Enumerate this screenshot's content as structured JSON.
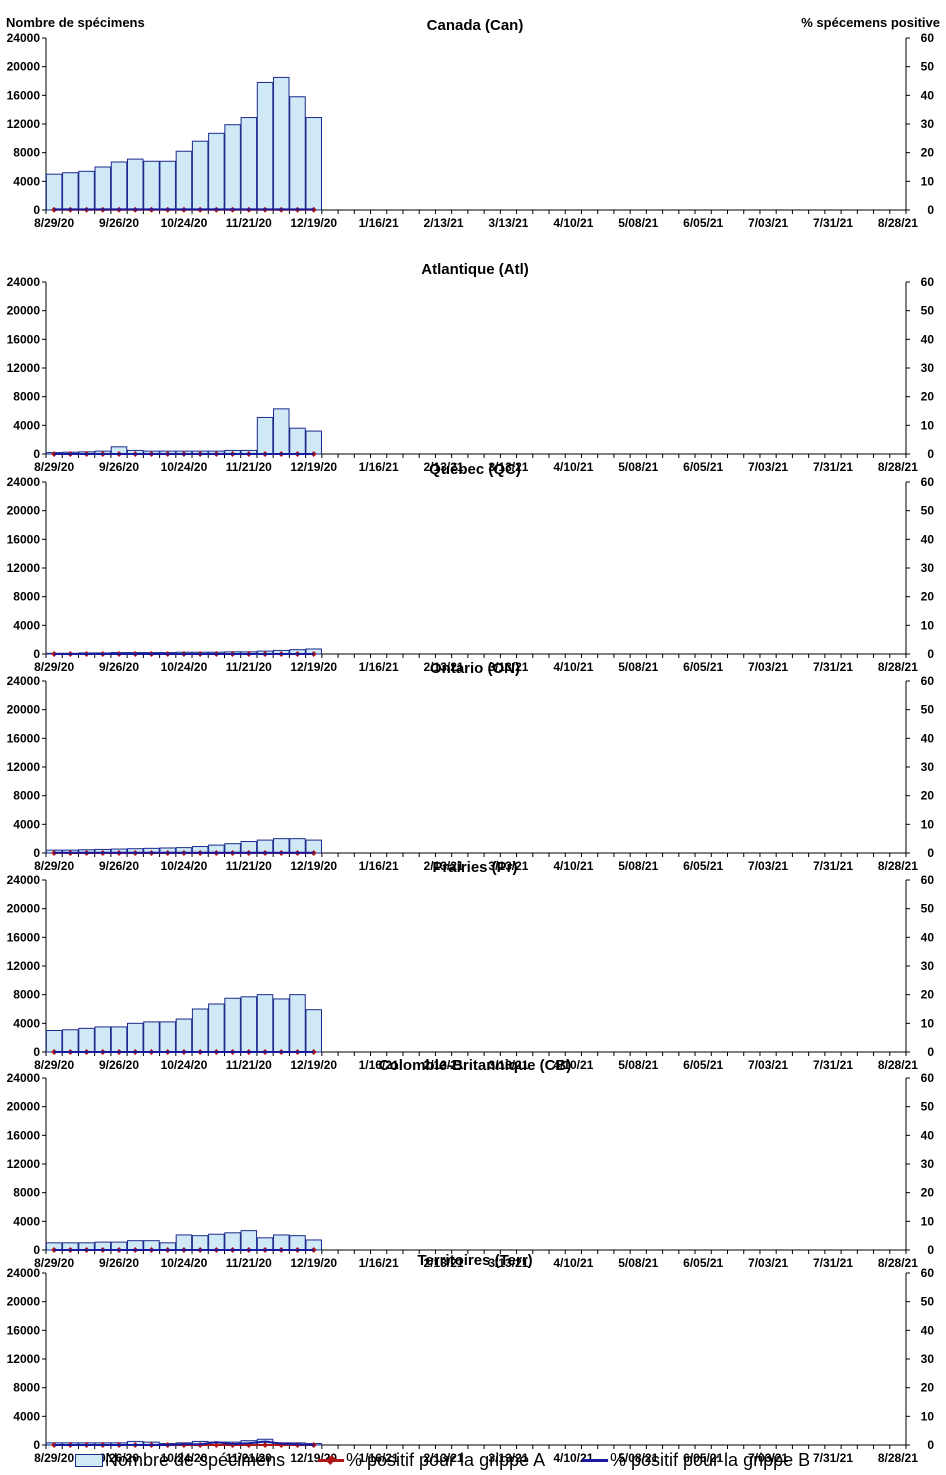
{
  "axis_titles": {
    "y_left": "Nombre de spécimens",
    "y_right": "% spécemens positive"
  },
  "legend": {
    "specimens": "Nombre de spécimens",
    "flu_a": "% positif pour la grippe A",
    "flu_b": "% positif pour la grippe B"
  },
  "colors": {
    "bar_fill": "#cfe9f7",
    "bar_stroke": "#1c2a8c",
    "flu_a": "#b01515",
    "flu_b": "#1a1a9c"
  },
  "chart_data": [
    {
      "type": "bar",
      "title": "Canada (Can)",
      "x_tick_labels": [
        "8/29/20",
        "9/26/20",
        "10/24/20",
        "11/21/20",
        "12/19/20",
        "1/16/21",
        "2/13/21",
        "3/13/21",
        "4/10/21",
        "5/08/21",
        "6/05/21",
        "7/03/21",
        "7/31/21",
        "8/28/21"
      ],
      "y_left_ticks": [
        0,
        4000,
        8000,
        12000,
        16000,
        20000,
        24000
      ],
      "y_right_ticks": [
        0,
        10,
        20,
        30,
        40,
        50,
        60
      ],
      "ylim": [
        0,
        24000
      ],
      "y2lim": [
        0,
        60
      ],
      "total_weeks": 53,
      "series": [
        {
          "name": "Nombre de spécimens",
          "kind": "bar",
          "axis": "left",
          "values": [
            5000,
            5200,
            5400,
            6000,
            6700,
            7100,
            6800,
            6800,
            8200,
            9600,
            10700,
            11900,
            12900,
            17800,
            18500,
            15800,
            12900
          ]
        },
        {
          "name": "% positif pour la grippe A",
          "kind": "line",
          "axis": "right",
          "values": [
            0.1,
            0.1,
            0.1,
            0.1,
            0.1,
            0.1,
            0.1,
            0.1,
            0.1,
            0.1,
            0.1,
            0.1,
            0.1,
            0.1,
            0.1,
            0.1,
            0.1
          ]
        },
        {
          "name": "% positif pour la grippe B",
          "kind": "line",
          "axis": "right",
          "values": [
            0.2,
            0.2,
            0.2,
            0.2,
            0.2,
            0.2,
            0.2,
            0.2,
            0.2,
            0.2,
            0.2,
            0.2,
            0.2,
            0.2,
            0.2,
            0.2,
            0.2
          ]
        }
      ]
    },
    {
      "type": "bar",
      "title": "Atlantique (Atl)",
      "x_tick_labels": [
        "8/29/20",
        "9/26/20",
        "10/24/20",
        "11/21/20",
        "12/19/20",
        "1/16/21",
        "2/13/21",
        "3/13/21",
        "4/10/21",
        "5/08/21",
        "6/05/21",
        "7/03/21",
        "7/31/21",
        "8/28/21"
      ],
      "y_left_ticks": [
        0,
        4000,
        8000,
        12000,
        16000,
        20000,
        24000
      ],
      "y_right_ticks": [
        0,
        10,
        20,
        30,
        40,
        50,
        60
      ],
      "ylim": [
        0,
        24000
      ],
      "y2lim": [
        0,
        60
      ],
      "total_weeks": 53,
      "series": [
        {
          "name": "Nombre de spécimens",
          "kind": "bar",
          "axis": "left",
          "values": [
            200,
            250,
            300,
            400,
            1000,
            500,
            400,
            400,
            400,
            400,
            400,
            500,
            500,
            5100,
            6300,
            3600,
            3200
          ]
        },
        {
          "name": "% positif pour la grippe A",
          "kind": "line",
          "axis": "right",
          "values": [
            0,
            0,
            0,
            0,
            0,
            0,
            0,
            0,
            0,
            0,
            0,
            0,
            0,
            0,
            0,
            0,
            0
          ]
        },
        {
          "name": "% positif pour la grippe B",
          "kind": "line",
          "axis": "right",
          "values": [
            0,
            0,
            0,
            0,
            0,
            0,
            0,
            0,
            0,
            0,
            0,
            0,
            0,
            0,
            0,
            0,
            0
          ]
        }
      ]
    },
    {
      "type": "bar",
      "title": "Québec (QC)",
      "x_tick_labels": [
        "8/29/20",
        "9/26/20",
        "10/24/20",
        "11/21/20",
        "12/19/20",
        "1/16/21",
        "2/13/21",
        "3/13/21",
        "4/10/21",
        "5/08/21",
        "6/05/21",
        "7/03/21",
        "7/31/21",
        "8/28/21"
      ],
      "y_left_ticks": [
        0,
        4000,
        8000,
        12000,
        16000,
        20000,
        24000
      ],
      "y_right_ticks": [
        0,
        10,
        20,
        30,
        40,
        50,
        60
      ],
      "ylim": [
        0,
        24000
      ],
      "y2lim": [
        0,
        60
      ],
      "total_weeks": 53,
      "series": [
        {
          "name": "Nombre de spécimens",
          "kind": "bar",
          "axis": "left",
          "values": [
            100,
            100,
            150,
            150,
            200,
            200,
            200,
            200,
            250,
            250,
            250,
            300,
            300,
            400,
            500,
            600,
            700
          ]
        },
        {
          "name": "% positif pour la grippe A",
          "kind": "line",
          "axis": "right",
          "values": [
            0,
            0,
            0,
            0,
            0,
            0,
            0,
            0,
            0,
            0,
            0,
            0,
            0,
            0,
            0,
            0,
            0
          ]
        },
        {
          "name": "% positif pour la grippe B",
          "kind": "line",
          "axis": "right",
          "values": [
            0,
            0,
            0,
            0,
            0,
            0,
            0,
            0,
            0,
            0,
            0,
            0,
            0,
            0,
            0,
            0,
            0
          ]
        }
      ]
    },
    {
      "type": "bar",
      "title": "Ontario (ON)",
      "x_tick_labels": [
        "8/29/20",
        "9/26/20",
        "10/24/20",
        "11/21/20",
        "12/19/20",
        "1/16/21",
        "2/13/21",
        "3/13/21",
        "4/10/21",
        "5/08/21",
        "6/05/21",
        "7/03/21",
        "7/31/21",
        "8/28/21"
      ],
      "y_left_ticks": [
        0,
        4000,
        8000,
        12000,
        16000,
        20000,
        24000
      ],
      "y_right_ticks": [
        0,
        10,
        20,
        30,
        40,
        50,
        60
      ],
      "ylim": [
        0,
        24000
      ],
      "y2lim": [
        0,
        60
      ],
      "total_weeks": 53,
      "series": [
        {
          "name": "Nombre de spécimens",
          "kind": "bar",
          "axis": "left",
          "values": [
            400,
            400,
            450,
            500,
            550,
            600,
            650,
            700,
            750,
            900,
            1100,
            1300,
            1600,
            1800,
            2000,
            2000,
            1800
          ]
        },
        {
          "name": "% positif pour la grippe A",
          "kind": "line",
          "axis": "right",
          "values": [
            0,
            0,
            0,
            0,
            0,
            0,
            0,
            0,
            0,
            0,
            0,
            0,
            0,
            0,
            0,
            0,
            0
          ]
        },
        {
          "name": "% positif pour la grippe B",
          "kind": "line",
          "axis": "right",
          "values": [
            0.1,
            0.1,
            0.1,
            0.1,
            0.1,
            0.1,
            0.1,
            0.1,
            0.1,
            0.1,
            0.1,
            0.1,
            0.1,
            0.1,
            0.1,
            0.1,
            0.1
          ]
        }
      ]
    },
    {
      "type": "bar",
      "title": "Prairies (Pr)",
      "x_tick_labels": [
        "8/29/20",
        "9/26/20",
        "10/24/20",
        "11/21/20",
        "12/19/20",
        "1/16/21",
        "2/13/21",
        "3/13/21",
        "4/10/21",
        "5/08/21",
        "6/05/21",
        "7/03/21",
        "7/31/21",
        "8/28/21"
      ],
      "y_left_ticks": [
        0,
        4000,
        8000,
        12000,
        16000,
        20000,
        24000
      ],
      "y_right_ticks": [
        0,
        10,
        20,
        30,
        40,
        50,
        60
      ],
      "ylim": [
        0,
        24000
      ],
      "y2lim": [
        0,
        60
      ],
      "total_weeks": 53,
      "series": [
        {
          "name": "Nombre de spécimens",
          "kind": "bar",
          "axis": "left",
          "values": [
            3000,
            3100,
            3300,
            3500,
            3500,
            4000,
            4200,
            4200,
            4600,
            6000,
            6700,
            7500,
            7700,
            8000,
            7400,
            8000,
            5900
          ]
        },
        {
          "name": "% positif pour la grippe A",
          "kind": "line",
          "axis": "right",
          "values": [
            0,
            0,
            0,
            0,
            0,
            0,
            0,
            0,
            0,
            0,
            0,
            0,
            0,
            0,
            0,
            0,
            0
          ]
        },
        {
          "name": "% positif pour la grippe B",
          "kind": "line",
          "axis": "right",
          "values": [
            0,
            0,
            0,
            0,
            0,
            0,
            0,
            0,
            0,
            0,
            0,
            0,
            0,
            0,
            0,
            0,
            0
          ]
        }
      ]
    },
    {
      "type": "bar",
      "title": "Colombie-Britannique (CB)",
      "x_tick_labels": [
        "8/29/20",
        "9/26/20",
        "10/24/20",
        "11/21/20",
        "12/19/20",
        "1/16/21",
        "2/13/21",
        "3/13/21",
        "4/10/21",
        "5/08/21",
        "6/05/21",
        "7/03/21",
        "7/31/21",
        "8/28/21"
      ],
      "y_left_ticks": [
        0,
        4000,
        8000,
        12000,
        16000,
        20000,
        24000
      ],
      "y_right_ticks": [
        0,
        10,
        20,
        30,
        40,
        50,
        60
      ],
      "ylim": [
        0,
        24000
      ],
      "y2lim": [
        0,
        60
      ],
      "total_weeks": 53,
      "series": [
        {
          "name": "Nombre de spécimens",
          "kind": "bar",
          "axis": "left",
          "values": [
            1000,
            1000,
            1000,
            1100,
            1100,
            1300,
            1300,
            1000,
            2100,
            2000,
            2200,
            2400,
            2700,
            1700,
            2100,
            2000,
            1400
          ]
        },
        {
          "name": "% positif pour la grippe A",
          "kind": "line",
          "axis": "right",
          "values": [
            0,
            0,
            0,
            0,
            0,
            0,
            0,
            0,
            0,
            0,
            0,
            0,
            0,
            0,
            0,
            0,
            0
          ]
        },
        {
          "name": "% positif pour la grippe B",
          "kind": "line",
          "axis": "right",
          "values": [
            0,
            0,
            0,
            0,
            0,
            0,
            0,
            0,
            0,
            0,
            0,
            0,
            0,
            0,
            0,
            0,
            0
          ]
        }
      ]
    },
    {
      "type": "bar",
      "title": "Territoires (Terr)",
      "x_tick_labels": [
        "8/29/20",
        "9/26/20",
        "10/24/20",
        "11/21/20",
        "12/19/20",
        "1/16/21",
        "2/13/21",
        "3/13/21",
        "4/10/21",
        "5/08/21",
        "6/05/21",
        "7/03/21",
        "7/31/21",
        "8/28/21"
      ],
      "y_left_ticks": [
        0,
        4000,
        8000,
        12000,
        16000,
        20000,
        24000
      ],
      "y_right_ticks": [
        0,
        10,
        20,
        30,
        40,
        50,
        60
      ],
      "ylim": [
        0,
        24000
      ],
      "y2lim": [
        0,
        60
      ],
      "total_weeks": 53,
      "series": [
        {
          "name": "Nombre de spécimens",
          "kind": "bar",
          "axis": "left",
          "values": [
            300,
            300,
            300,
            300,
            300,
            500,
            400,
            200,
            300,
            500,
            400,
            400,
            600,
            800,
            300,
            300,
            200
          ]
        },
        {
          "name": "% positif pour la grippe A",
          "kind": "line",
          "axis": "right",
          "values": [
            0,
            0,
            0,
            0,
            0,
            0,
            0,
            0,
            0,
            0,
            0,
            0,
            0,
            0,
            0,
            0,
            0
          ]
        },
        {
          "name": "% positif pour la grippe B",
          "kind": "line",
          "axis": "right",
          "values": [
            0,
            0,
            0,
            0,
            0,
            0,
            0,
            0,
            0.3,
            0.2,
            1.0,
            0.3,
            0.6,
            1.2,
            0.5,
            0.2,
            0
          ]
        }
      ]
    }
  ]
}
